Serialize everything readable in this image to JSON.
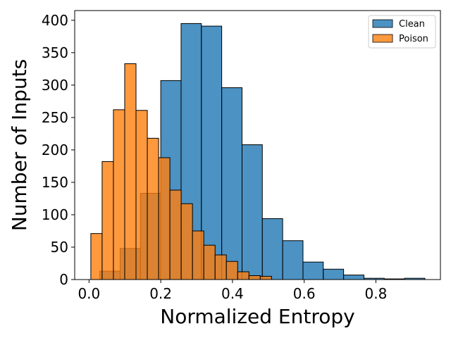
{
  "chart_data": {
    "type": "histogram",
    "title": "",
    "xlabel": "Normalized Entropy",
    "ylabel": "Number of Inputs",
    "xlim": [
      -0.04,
      0.98
    ],
    "ylim": [
      0,
      415
    ],
    "xticks": [
      0.0,
      0.2,
      0.4,
      0.6,
      0.8
    ],
    "xtick_labels": [
      "0.0",
      "0.2",
      "0.4",
      "0.6",
      "0.8"
    ],
    "yticks": [
      0,
      50,
      100,
      150,
      200,
      250,
      300,
      350,
      400
    ],
    "ytick_labels": [
      "0",
      "50",
      "100",
      "150",
      "200",
      "250",
      "300",
      "350",
      "400"
    ],
    "legend_position": "top-right",
    "series": [
      {
        "name": "Clean",
        "color": "#1f77b4",
        "bin_edges": [
          0.03,
          0.0867,
          0.1433,
          0.2,
          0.2567,
          0.3133,
          0.37,
          0.4267,
          0.4833,
          0.54,
          0.5967,
          0.6533,
          0.71,
          0.7667,
          0.8233,
          0.88,
          0.9367
        ],
        "counts": [
          13,
          48,
          133,
          307,
          395,
          391,
          296,
          208,
          94,
          60,
          27,
          16,
          7,
          2,
          1,
          2
        ]
      },
      {
        "name": "Poison",
        "color": "#ff7f0e",
        "bin_edges": [
          0.005,
          0.0365,
          0.068,
          0.0995,
          0.131,
          0.1625,
          0.194,
          0.2255,
          0.257,
          0.2885,
          0.32,
          0.3515,
          0.383,
          0.4145,
          0.446,
          0.4775,
          0.509
        ],
        "counts": [
          71,
          182,
          262,
          333,
          261,
          218,
          188,
          138,
          117,
          75,
          53,
          38,
          28,
          12,
          6,
          5
        ]
      }
    ]
  }
}
